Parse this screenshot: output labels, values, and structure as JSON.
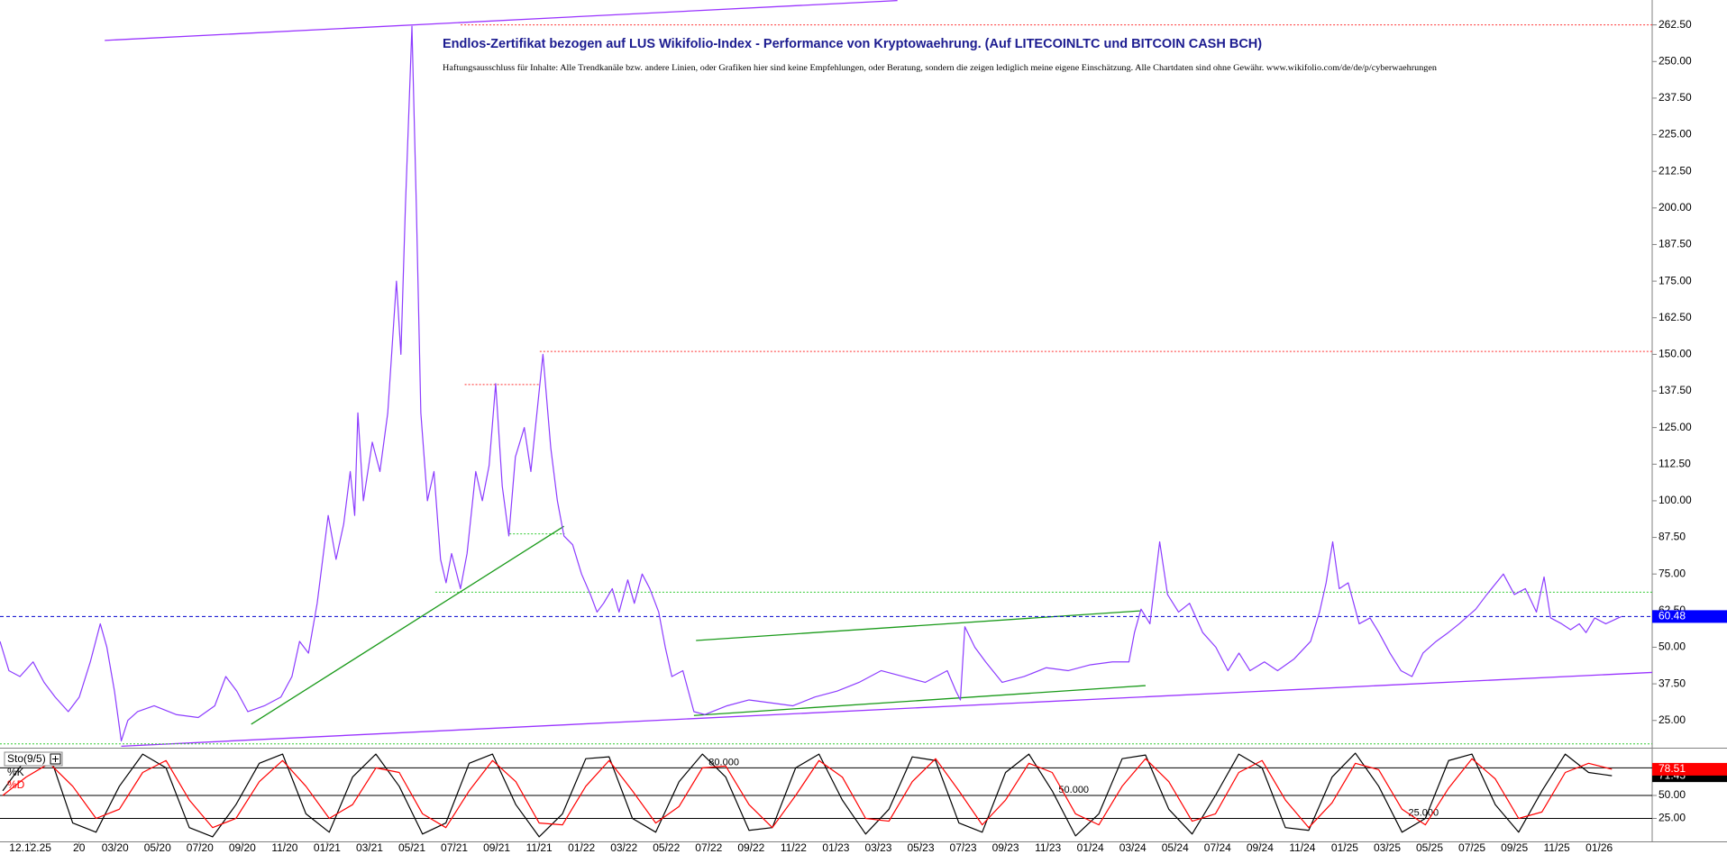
{
  "chart_data": [
    {
      "type": "line",
      "title": "Endlos-Zertifikat bezogen auf LUS Wikifolio-Index - Performance von Kryptowaehrung. (Auf LITECOINLTC und BITCOIN CASH BCH)",
      "subtitle": "Haftungsausschluss für Inhalte: Alle Trendkanäle bzw. andere Linien, oder Grafiken hier sind keine Empfehlungen, oder Beratung, sondern die zeigen lediglich meine eigene Einschätzung. Alle Chartdaten sind ohne Gewähr.  www.wikifolio.com/de/de/p/cyberwaehrungen",
      "color": "#8c3cff",
      "last_value_color": "#0000ff",
      "x": [
        -3.43,
        -3.01,
        -2.49,
        -1.87,
        -1.35,
        -0.83,
        -0.21,
        0.31,
        0.83,
        1.3,
        1.61,
        1.97,
        2.29,
        2.6,
        3.06,
        3.84,
        4.88,
        5.92,
        6.7,
        7.22,
        7.74,
        8.26,
        9.04,
        9.82,
        10.34,
        10.7,
        11.12,
        11.53,
        12.05,
        12.42,
        12.78,
        13.09,
        13.3,
        13.45,
        13.71,
        14.13,
        14.49,
        14.86,
        15.27,
        15.48,
        15.69,
        16.0,
        16.21,
        16.42,
        16.73,
        17.04,
        17.35,
        17.61,
        17.87,
        18.29,
        18.6,
        19.01,
        19.32,
        19.64,
        19.95,
        20.26,
        20.57,
        20.88,
        21.3,
        21.61,
        22.18,
        22.55,
        22.86,
        23.17,
        23.58,
        24.0,
        24.42,
        24.73,
        25.04,
        25.45,
        25.77,
        26.18,
        26.49,
        26.86,
        27.22,
        27.64,
        27.95,
        28.26,
        28.78,
        29.3,
        29.82,
        30.86,
        31.9,
        32.94,
        33.97,
        35.01,
        36.05,
        37.09,
        38.13,
        39.17,
        40.21,
        41.25,
        41.66,
        41.87,
        42.08,
        42.55,
        43.06,
        43.84,
        44.88,
        45.92,
        46.96,
        48.0,
        49.04,
        49.82,
        50.08,
        50.39,
        50.81,
        51.27,
        51.64,
        52.16,
        52.68,
        53.3,
        53.92,
        54.49,
        55.01,
        55.53,
        56.21,
        56.83,
        57.61,
        58.39,
        58.81,
        59.12,
        59.43,
        59.74,
        60.16,
        60.68,
        61.19,
        61.61,
        62.13,
        62.65,
        63.17,
        63.69,
        64.31,
        64.88,
        65.4,
        66.18,
        66.7,
        67.48,
        68.0,
        68.52,
        69.04,
        69.4,
        69.71,
        70.23,
        70.65,
        71.06,
        71.38,
        71.79,
        72.31,
        73.04
      ],
      "values": [
        52,
        42,
        40,
        45,
        38,
        33,
        28,
        33,
        45,
        58,
        50,
        35,
        18,
        25,
        28,
        30,
        27,
        26,
        30,
        40,
        35,
        28,
        30,
        33,
        40,
        52,
        48,
        65,
        95,
        80,
        92,
        110,
        95,
        130,
        100,
        120,
        110,
        130,
        175,
        150,
        200,
        262,
        200,
        130,
        100,
        110,
        80,
        72,
        82,
        70,
        82,
        110,
        100,
        112,
        140,
        105,
        88,
        115,
        125,
        110,
        150,
        118,
        100,
        88,
        85,
        75,
        68,
        62,
        65,
        70,
        62,
        73,
        65,
        75,
        70,
        62,
        50,
        40,
        42,
        28,
        27,
        30,
        32,
        31,
        30,
        33,
        35,
        38,
        42,
        40,
        38,
        42,
        35,
        32,
        57,
        50,
        45,
        38,
        40,
        43,
        42,
        44,
        45,
        45,
        55,
        63,
        58,
        86,
        68,
        62,
        65,
        55,
        50,
        42,
        48,
        42,
        45,
        42,
        46,
        52,
        62,
        72,
        86,
        70,
        72,
        58,
        60,
        55,
        48,
        42,
        40,
        48,
        52,
        55,
        58,
        63,
        68,
        75,
        68,
        70,
        62,
        74,
        60,
        58,
        56,
        58,
        55,
        60,
        58,
        60.48
      ],
      "xlim": [
        -3.43,
        74.5
      ],
      "ylim": [
        16,
        271
      ],
      "yticks": [
        {
          "value": 25,
          "label": "25.00"
        },
        {
          "value": 37.5,
          "label": "37.50"
        },
        {
          "value": 50,
          "label": "50.00"
        },
        {
          "value": 62.5,
          "label": "62.50"
        },
        {
          "value": 75,
          "label": "75.00"
        },
        {
          "value": 87.5,
          "label": "87.50"
        },
        {
          "value": 100,
          "label": "100.00"
        },
        {
          "value": 112.5,
          "label": "112.50"
        },
        {
          "value": 125,
          "label": "125.00"
        },
        {
          "value": 137.5,
          "label": "137.50"
        },
        {
          "value": 150,
          "label": "150.00"
        },
        {
          "value": 162.5,
          "label": "162.50"
        },
        {
          "value": 175,
          "label": "175.00"
        },
        {
          "value": 187.5,
          "label": "187.50"
        },
        {
          "value": 200,
          "label": "200.00"
        },
        {
          "value": 212.5,
          "label": "212.50"
        },
        {
          "value": 225,
          "label": "225.00"
        },
        {
          "value": 237.5,
          "label": "237.50"
        },
        {
          "value": 250,
          "label": "250.00"
        },
        {
          "value": 262.5,
          "label": "262.50"
        }
      ],
      "xticks": [
        {
          "value": -2,
          "label": "12.12.25"
        },
        {
          "value": 0.3,
          "label": "20"
        },
        {
          "value": 2,
          "label": "03/20"
        },
        {
          "value": 4,
          "label": "05/20"
        },
        {
          "value": 6,
          "label": "07/20"
        },
        {
          "value": 8,
          "label": "09/20"
        },
        {
          "value": 10,
          "label": "11/20"
        },
        {
          "value": 12,
          "label": "01/21"
        },
        {
          "value": 14,
          "label": "03/21"
        },
        {
          "value": 16,
          "label": "05/21"
        },
        {
          "value": 18,
          "label": "07/21"
        },
        {
          "value": 20,
          "label": "09/21"
        },
        {
          "value": 22,
          "label": "11/21"
        },
        {
          "value": 24,
          "label": "01/22"
        },
        {
          "value": 26,
          "label": "03/22"
        },
        {
          "value": 28,
          "label": "05/22"
        },
        {
          "value": 30,
          "label": "07/22"
        },
        {
          "value": 32,
          "label": "09/22"
        },
        {
          "value": 34,
          "label": "11/22"
        },
        {
          "value": 36,
          "label": "01/23"
        },
        {
          "value": 38,
          "label": "03/23"
        },
        {
          "value": 40,
          "label": "05/23"
        },
        {
          "value": 42,
          "label": "07/23"
        },
        {
          "value": 44,
          "label": "09/23"
        },
        {
          "value": 46,
          "label": "11/23"
        },
        {
          "value": 48,
          "label": "01/24"
        },
        {
          "value": 50,
          "label": "03/24"
        },
        {
          "value": 52,
          "label": "05/24"
        },
        {
          "value": 54,
          "label": "07/24"
        },
        {
          "value": 56,
          "label": "09/24"
        },
        {
          "value": 58,
          "label": "11/24"
        },
        {
          "value": 60,
          "label": "01/25"
        },
        {
          "value": 62,
          "label": "03/25"
        },
        {
          "value": 64,
          "label": "05/25"
        },
        {
          "value": 66,
          "label": "07/25"
        },
        {
          "value": 68,
          "label": "09/25"
        },
        {
          "value": 70,
          "label": "11/25"
        },
        {
          "value": 72,
          "label": "01/26"
        }
      ],
      "lines": [
        {
          "color": "#9933ff",
          "style": "solid",
          "x": [
            2.29,
            74.5
          ],
          "y": [
            16.2,
            41.4
          ]
        },
        {
          "color": "#9933ff",
          "style": "solid",
          "x": [
            1.51,
            38.9
          ],
          "y": [
            257.2,
            270.8
          ]
        },
        {
          "color": "#1a9a1a",
          "style": "solid",
          "x": [
            8.42,
            23.17
          ],
          "y": [
            23.7,
            91.3
          ]
        },
        {
          "color": "#1a9a1a",
          "style": "solid",
          "x": [
            29.4,
            50.34
          ],
          "y": [
            52.3,
            62.4
          ]
        },
        {
          "color": "#1a9a1a",
          "style": "solid",
          "x": [
            29.3,
            50.6
          ],
          "y": [
            26.7,
            36.9
          ]
        },
        {
          "color": "#ff3333",
          "style": "dotted",
          "x": [
            18.49,
            22.03
          ],
          "y": [
            139.7,
            139.7
          ]
        },
        {
          "color": "#ff3333",
          "style": "dotted",
          "x": [
            22.03,
            74.5
          ],
          "y": [
            151,
            151
          ]
        },
        {
          "color": "#ff3333",
          "style": "dotted",
          "x": [
            18.3,
            74.5
          ],
          "y": [
            262.5,
            262.5
          ]
        },
        {
          "color": "#33cc33",
          "style": "dotted",
          "x": [
            20.6,
            23.2
          ],
          "y": [
            88.7,
            88.7
          ]
        },
        {
          "color": "#33cc33",
          "style": "dotted",
          "x": [
            17.1,
            74.5
          ],
          "y": [
            68.8,
            68.8
          ]
        },
        {
          "color": "#33cc33",
          "style": "dotted",
          "x": [
            -3.43,
            74.5
          ],
          "y": [
            17,
            17
          ]
        },
        {
          "color": "#0000cc",
          "style": "dashed",
          "x": [
            -3.43,
            74.5
          ],
          "y": [
            60.48,
            60.48
          ]
        }
      ]
    },
    {
      "type": "line",
      "indicator": "Sto(9/5)",
      "x": [
        -3.3,
        -2.2,
        -1.1,
        0,
        1.1,
        2.2,
        3.3,
        4.4,
        5.5,
        6.6,
        7.7,
        8.8,
        9.9,
        11,
        12.1,
        13.2,
        14.3,
        15.4,
        16.5,
        17.6,
        18.7,
        19.8,
        20.9,
        22,
        23.1,
        24.2,
        25.3,
        26.4,
        27.5,
        28.6,
        29.7,
        30.8,
        31.9,
        33,
        34.1,
        35.2,
        36.3,
        37.4,
        38.5,
        39.6,
        40.7,
        41.8,
        42.9,
        44,
        45.1,
        46.2,
        47.3,
        48.4,
        49.5,
        50.6,
        51.7,
        52.8,
        53.9,
        55,
        56.1,
        57.2,
        58.3,
        59.4,
        60.5,
        61.6,
        62.7,
        63.8,
        64.9,
        66,
        67.1,
        68.2,
        69.3,
        70.4,
        71.5,
        72.6
      ],
      "series": [
        {
          "name": "%K",
          "color": "#000000",
          "values": [
            55,
            90,
            95,
            20,
            10,
            60,
            95,
            80,
            15,
            5,
            40,
            85,
            95,
            30,
            10,
            70,
            95,
            60,
            8,
            20,
            85,
            95,
            40,
            5,
            30,
            90,
            92,
            25,
            10,
            65,
            95,
            70,
            12,
            15,
            80,
            95,
            45,
            8,
            35,
            92,
            88,
            20,
            10,
            75,
            95,
            55,
            6,
            30,
            90,
            94,
            35,
            8,
            50,
            95,
            80,
            15,
            12,
            70,
            96,
            60,
            10,
            25,
            88,
            95,
            40,
            10,
            55,
            95,
            75,
            71.43
          ]
        },
        {
          "name": "%D",
          "color": "#ff0000",
          "values": [
            50,
            70,
            85,
            60,
            25,
            35,
            75,
            88,
            45,
            15,
            25,
            65,
            88,
            60,
            25,
            40,
            80,
            75,
            30,
            15,
            55,
            88,
            65,
            20,
            18,
            60,
            88,
            55,
            20,
            38,
            80,
            82,
            40,
            15,
            50,
            88,
            70,
            25,
            22,
            65,
            90,
            55,
            18,
            45,
            85,
            75,
            30,
            18,
            60,
            90,
            65,
            22,
            30,
            75,
            88,
            45,
            15,
            42,
            85,
            78,
            35,
            18,
            58,
            90,
            68,
            25,
            32,
            75,
            85,
            78.51
          ]
        }
      ],
      "xlim": [
        -3.43,
        74.5
      ],
      "ylim": [
        0,
        100
      ],
      "yticks": [
        {
          "value": 25,
          "label": "25.00"
        },
        {
          "value": 50,
          "label": "50.00"
        }
      ],
      "levels": [
        {
          "value": 80,
          "label": "80.000"
        },
        {
          "value": 50,
          "label": "50.000"
        },
        {
          "value": 25,
          "label": "25.000"
        }
      ]
    }
  ]
}
